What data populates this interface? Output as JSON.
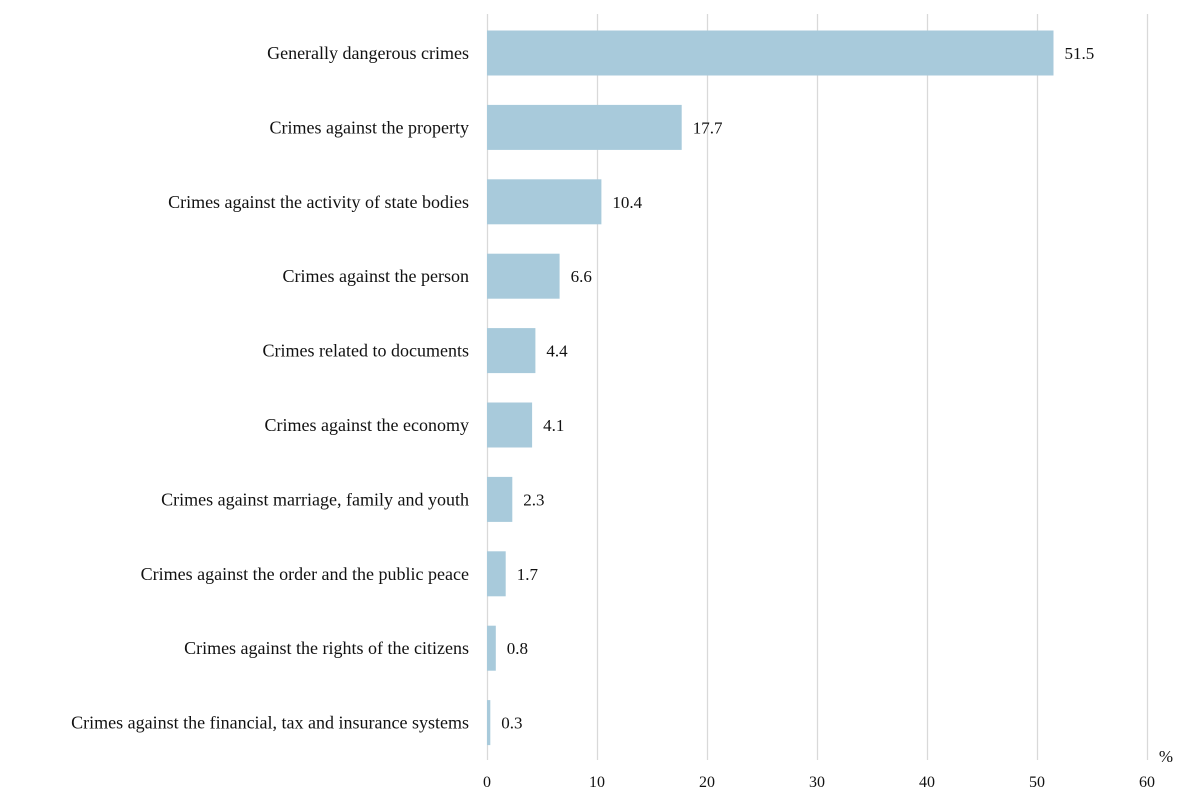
{
  "chart_data": {
    "type": "bar",
    "orientation": "horizontal",
    "categories": [
      "Generally dangerous crimes",
      "Crimes against the property ",
      "Crimes against the activity of state bodies",
      "Crimes against the person",
      "Crimes related to documents",
      "Crimes against the economy",
      "Crimes against marriage, family and youth",
      "Crimes against the order and the public peace",
      "Crimes against the rights of the citizens",
      "Crimes against the financial, tax and insurance systems"
    ],
    "values": [
      51.5,
      17.7,
      10.4,
      6.6,
      4.4,
      4.1,
      2.3,
      1.7,
      0.8,
      0.3
    ],
    "value_labels": [
      "51.5",
      "17.7",
      "10.4",
      "6.6",
      "4.4",
      "4.1",
      "2.3",
      "1.7",
      "0.8",
      "0.3"
    ],
    "xlim": [
      0,
      60
    ],
    "xticks": [
      0,
      10,
      20,
      30,
      40,
      50,
      60
    ],
    "xtick_labels": [
      "0",
      "10",
      "20",
      "30",
      "40",
      "50",
      "60"
    ],
    "unit_label": "%",
    "grid": true,
    "bar_color": "#a8cadb",
    "grid_color": "#d9d9d9"
  }
}
